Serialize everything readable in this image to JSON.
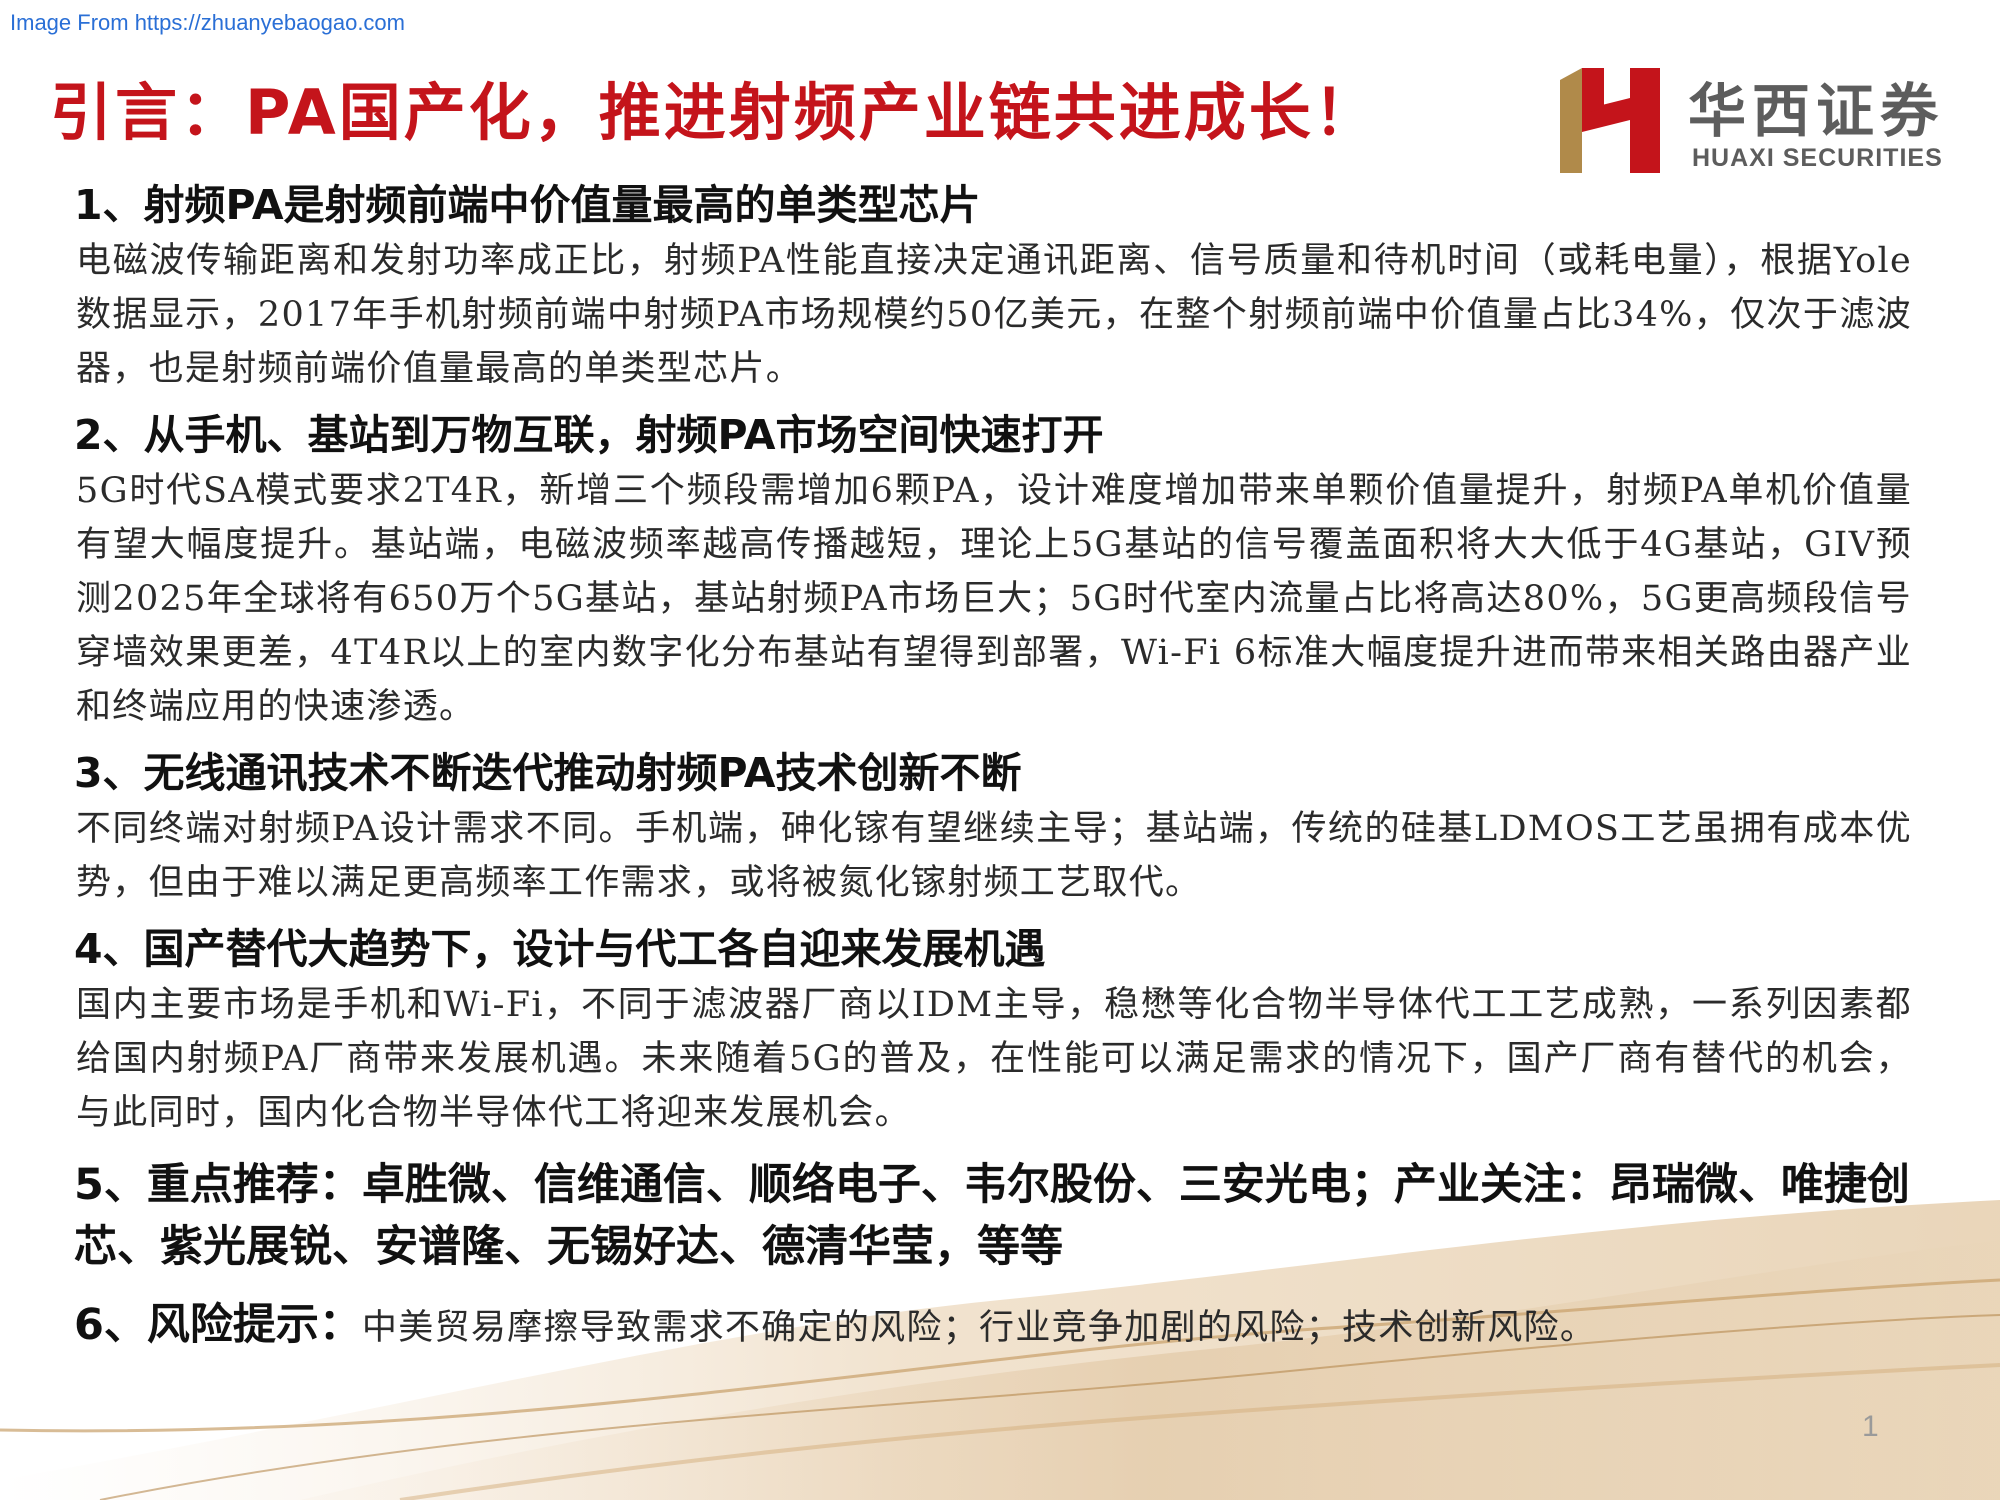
{
  "watermark": "Image From https://zhuanyebaogao.com",
  "title": "引言：PA国产化，推进射频产业链共进成长！",
  "logo": {
    "name_cn": "华西证券",
    "name_en": "HUAXI SECURITIES",
    "brand_red": "#c4141b",
    "brand_gold": "#b08a4a"
  },
  "sections": [
    {
      "heading": "1、射频PA是射频前端中价值量最高的单类型芯片",
      "body": "电磁波传输距离和发射功率成正比，射频PA性能直接决定通讯距离、信号质量和待机时间（或耗电量），根据Yole数据显示，2017年手机射频前端中射频PA市场规模约50亿美元，在整个射频前端中价值量占比34%，仅次于滤波器，也是射频前端价值量最高的单类型芯片。"
    },
    {
      "heading": "2、从手机、基站到万物互联，射频PA市场空间快速打开",
      "body": "5G时代SA模式要求2T4R，新增三个频段需增加6颗PA，设计难度增加带来单颗价值量提升，射频PA单机价值量有望大幅度提升。基站端，电磁波频率越高传播越短，理论上5G基站的信号覆盖面积将大大低于4G基站，GIV预测2025年全球将有650万个5G基站，基站射频PA市场巨大；5G时代室内流量占比将高达80%，5G更高频段信号穿墙效果更差，4T4R以上的室内数字化分布基站有望得到部署，Wi-Fi 6标准大幅度提升进而带来相关路由器产业和终端应用的快速渗透。"
    },
    {
      "heading": "3、无线通讯技术不断迭代推动射频PA技术创新不断",
      "body": "不同终端对射频PA设计需求不同。手机端，砷化镓有望继续主导；基站端，传统的硅基LDMOS工艺虽拥有成本优势，但由于难以满足更高频率工作需求，或将被氮化镓射频工艺取代。"
    },
    {
      "heading": "4、国产替代大趋势下，设计与代工各自迎来发展机遇",
      "body": "国内主要市场是手机和Wi-Fi，不同于滤波器厂商以IDM主导，稳懋等化合物半导体代工工艺成熟，一系列因素都给国内射频PA厂商带来发展机遇。未来随着5G的普及，在性能可以满足需求的情况下，国产厂商有替代的机会，与此同时，国内化合物半导体代工将迎来发展机会。"
    }
  ],
  "recommend": "5、重点推荐：卓胜微、信维通信、顺络电子、韦尔股份、三安光电；产业关注：昂瑞微、唯捷创芯、紫光展锐、安谱隆、无锡好达、德清华莹，等等",
  "risk": {
    "label": "6、风险提示：",
    "text": "中美贸易摩擦导致需求不确定的风险；行业竞争加剧的风险；技术创新风险。"
  },
  "page_number": "1"
}
